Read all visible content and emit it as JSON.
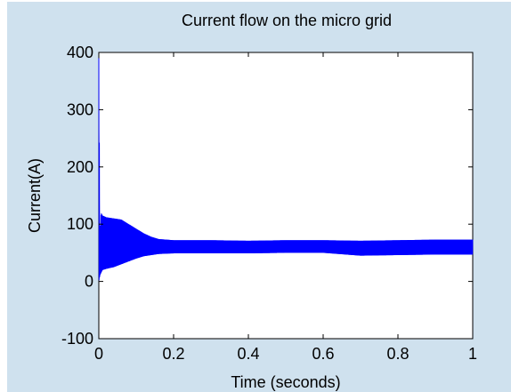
{
  "chart_data": {
    "type": "line",
    "title": "Current flow on the micro grid",
    "xlabel": "Time (seconds)",
    "ylabel": "Current(A)",
    "xlim": [
      0,
      1
    ],
    "ylim": [
      -100,
      400
    ],
    "xticks": [
      "0",
      "0.2",
      "0.4",
      "0.6",
      "0.8",
      "1"
    ],
    "xtick_values": [
      0,
      0.2,
      0.4,
      0.6,
      0.8,
      1
    ],
    "yticks": [
      "-100",
      "0",
      "100",
      "200",
      "300",
      "400"
    ],
    "ytick_values": [
      -100,
      0,
      100,
      200,
      300,
      400
    ],
    "grid": false,
    "legend": "none",
    "series_color": "#0000ff",
    "figure_bg": "#cfe1ee",
    "axes_bg": "#ffffff",
    "series": [
      {
        "x": [
          0.0,
          0.003,
          0.006,
          0.01,
          0.02,
          0.04,
          0.06,
          0.08,
          0.1,
          0.12,
          0.14,
          0.16,
          0.2,
          0.3,
          0.4,
          0.5,
          0.6,
          0.7,
          0.8,
          0.9,
          1.0
        ],
        "upper": [
          390,
          80,
          120,
          115,
          112,
          110,
          108,
          100,
          92,
          84,
          78,
          74,
          72,
          72,
          71,
          72,
          72,
          71,
          72,
          73,
          73
        ],
        "lower": [
          0,
          10,
          15,
          20,
          22,
          25,
          30,
          35,
          40,
          44,
          46,
          48,
          49,
          49,
          49,
          50,
          50,
          45,
          46,
          47,
          47
        ]
      }
    ]
  }
}
